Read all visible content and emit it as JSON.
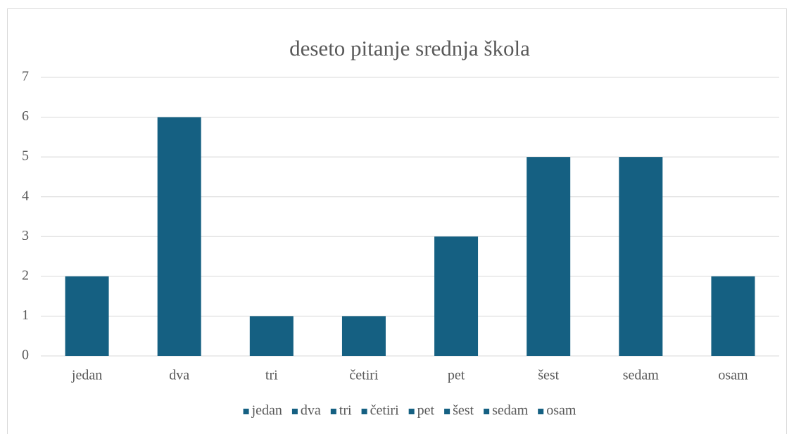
{
  "chart_data": {
    "type": "bar",
    "title": "deseto pitanje srednja škola",
    "categories": [
      "jedan",
      "dva",
      "tri",
      "četiri",
      "pet",
      "šest",
      "sedam",
      "osam"
    ],
    "values": [
      2,
      6,
      1,
      1,
      3,
      5,
      5,
      2
    ],
    "color": "#156082",
    "ylim": [
      0,
      7
    ],
    "yticks": [
      0,
      1,
      2,
      3,
      4,
      5,
      6,
      7
    ],
    "grid": true,
    "legend": "bottom"
  }
}
